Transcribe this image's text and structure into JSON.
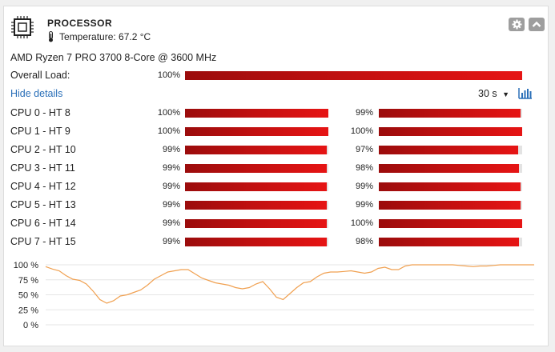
{
  "header": {
    "title": "PROCESSOR",
    "temperature": "Temperature: 67.2 °C",
    "icons": [
      "cpu-chip-icon",
      "thermometer-icon",
      "gear-icon",
      "chevron-up-icon"
    ]
  },
  "model": "AMD Ryzen 7 PRO 3700 8-Core @ 3600 MHz",
  "overall": {
    "label": "Overall Load:",
    "percent_text": "100%",
    "value": 100
  },
  "details": {
    "hide_label": "Hide details",
    "interval": "30 s",
    "interval_icon": "caret-down-icon",
    "chart_icon": "bar-chart-icon"
  },
  "cores": [
    {
      "label": "CPU 0 - HT 8",
      "a": 100,
      "a_text": "100%",
      "b": 99,
      "b_text": "99%"
    },
    {
      "label": "CPU 1 - HT 9",
      "a": 100,
      "a_text": "100%",
      "b": 100,
      "b_text": "100%"
    },
    {
      "label": "CPU 2 - HT 10",
      "a": 99,
      "a_text": "99%",
      "b": 97,
      "b_text": "97%"
    },
    {
      "label": "CPU 3 - HT 11",
      "a": 99,
      "a_text": "99%",
      "b": 98,
      "b_text": "98%"
    },
    {
      "label": "CPU 4 - HT 12",
      "a": 99,
      "a_text": "99%",
      "b": 99,
      "b_text": "99%"
    },
    {
      "label": "CPU 5 - HT 13",
      "a": 99,
      "a_text": "99%",
      "b": 99,
      "b_text": "99%"
    },
    {
      "label": "CPU 6 - HT 14",
      "a": 99,
      "a_text": "99%",
      "b": 100,
      "b_text": "100%"
    },
    {
      "label": "CPU 7 - HT 15",
      "a": 99,
      "a_text": "99%",
      "b": 98,
      "b_text": "98%"
    }
  ],
  "colors": {
    "bar_dark": "#9b0c0c",
    "bar_bright": "#e61414",
    "bar_track": "#e3e3e3",
    "line": "#f0a050",
    "link": "#2a6fb8",
    "button": "#9e9e9e"
  },
  "chart_data": {
    "type": "line",
    "y_ticks": [
      "100 %",
      "75 %",
      "50 %",
      "25 %",
      "0 %"
    ],
    "ylim": [
      0,
      100
    ],
    "grid": true,
    "series": [
      {
        "values": [
          97,
          93,
          90,
          82,
          76,
          74,
          68,
          56,
          42,
          36,
          40,
          48,
          50,
          54,
          58,
          66,
          76,
          82,
          88,
          90,
          92,
          92,
          85,
          78,
          74,
          70,
          68,
          66,
          62,
          60,
          62,
          68,
          72,
          60,
          46,
          42,
          52,
          62,
          70,
          72,
          80,
          86,
          88,
          88,
          89,
          90,
          88,
          86,
          88,
          94,
          96,
          92,
          92,
          98,
          100,
          100,
          100,
          100,
          100,
          100,
          100,
          99,
          98,
          97,
          98,
          98,
          99,
          100,
          100,
          100,
          100,
          100,
          100
        ]
      }
    ]
  }
}
